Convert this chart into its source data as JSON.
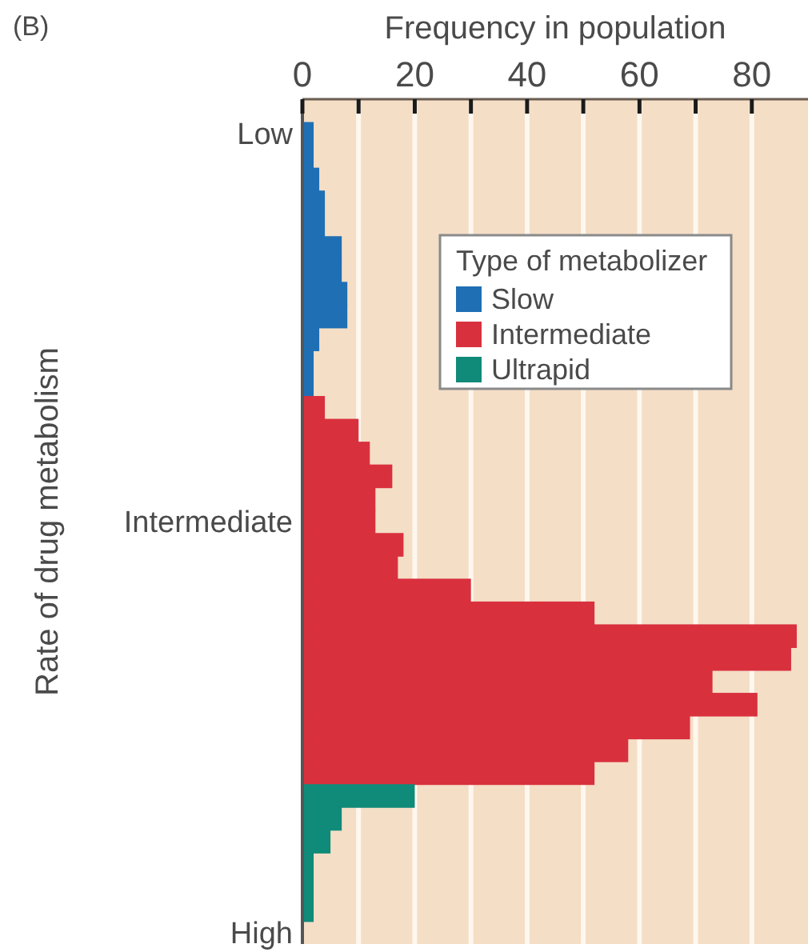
{
  "chart_data": {
    "type": "bar",
    "orientation": "horizontal",
    "stacked": true,
    "xlabel": "Frequency in population",
    "ylabel": "Rate of drug metabolism",
    "legend_title": "Type of metabolizer",
    "annotations": [
      "(B)"
    ],
    "categories": [
      null,
      "Low",
      null,
      null,
      null,
      null,
      null,
      null,
      null,
      null,
      null,
      null,
      null,
      null,
      null,
      null,
      null,
      null,
      "Intermediate",
      null,
      null,
      null,
      null,
      null,
      null,
      null,
      null,
      null,
      null,
      null,
      null,
      null,
      null,
      null,
      null,
      null,
      "High"
    ],
    "series": [
      {
        "name": "Slow",
        "color": "#1f6fb5",
        "values": [
          null,
          2,
          2,
          3,
          4,
          4,
          7,
          7,
          8,
          8,
          3,
          2,
          2,
          null,
          null,
          null,
          null,
          null,
          null,
          null,
          null,
          null,
          null,
          null,
          null,
          null,
          null,
          null,
          null,
          null,
          null,
          null,
          null,
          null,
          null,
          null,
          null
        ]
      },
      {
        "name": "Intermediate",
        "color": "#d9303e",
        "values": [
          null,
          null,
          null,
          null,
          null,
          null,
          null,
          null,
          null,
          null,
          null,
          null,
          null,
          4,
          10,
          12,
          16,
          13,
          13,
          18,
          17,
          30,
          52,
          88,
          87,
          73,
          81,
          69,
          58,
          52,
          null,
          null,
          null,
          null,
          null,
          null,
          null
        ]
      },
      {
        "name": "Ultrapid",
        "color": "#108a79",
        "values": [
          null,
          null,
          null,
          null,
          null,
          null,
          null,
          null,
          null,
          null,
          null,
          null,
          null,
          null,
          null,
          null,
          null,
          null,
          null,
          null,
          null,
          null,
          null,
          null,
          null,
          null,
          null,
          null,
          null,
          null,
          20,
          7,
          5,
          2,
          2,
          2,
          null
        ]
      }
    ],
    "xlim": [
      0,
      90
    ],
    "xticks": [
      0,
      {
        "value": 10,
        "label": null
      },
      20,
      {
        "value": 30,
        "label": null
      },
      40,
      {
        "value": 50,
        "label": null
      },
      60,
      {
        "value": 70,
        "label": null
      },
      80
    ],
    "grid": "x",
    "legend": "top right"
  }
}
